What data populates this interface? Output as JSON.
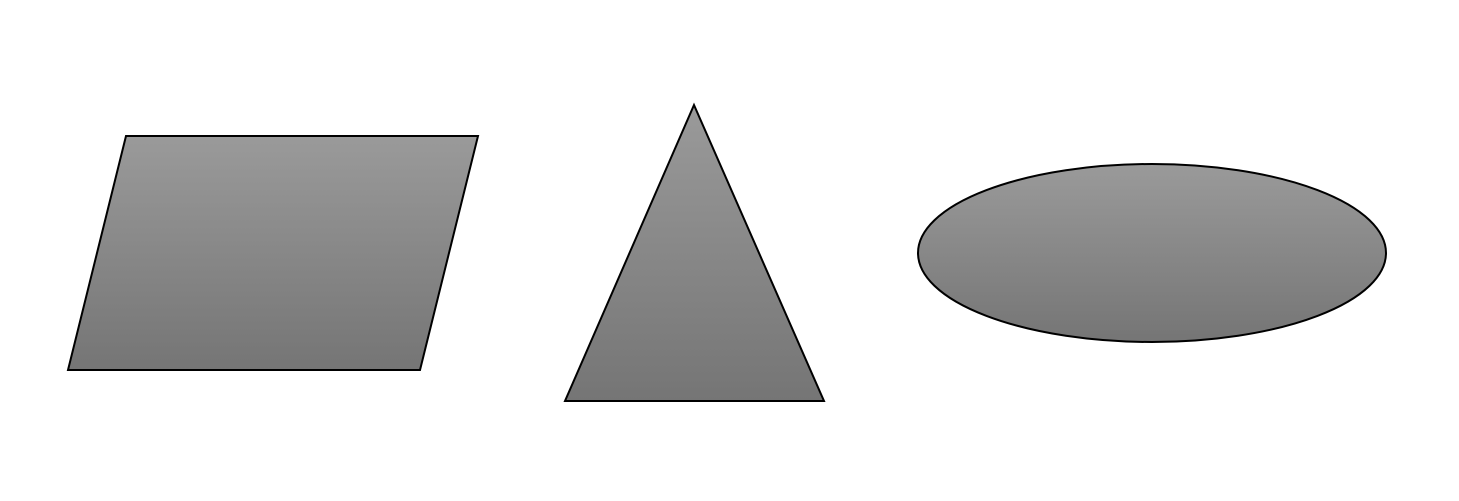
{
  "colors": {
    "background": "#ffffff",
    "fill_top": "#9a9a9a",
    "fill_bottom": "#757575",
    "stroke": "#000000"
  },
  "shapes": [
    {
      "kind": "parallelogram",
      "label": ""
    },
    {
      "kind": "triangle",
      "label": ""
    },
    {
      "kind": "ellipse",
      "label": ""
    }
  ]
}
